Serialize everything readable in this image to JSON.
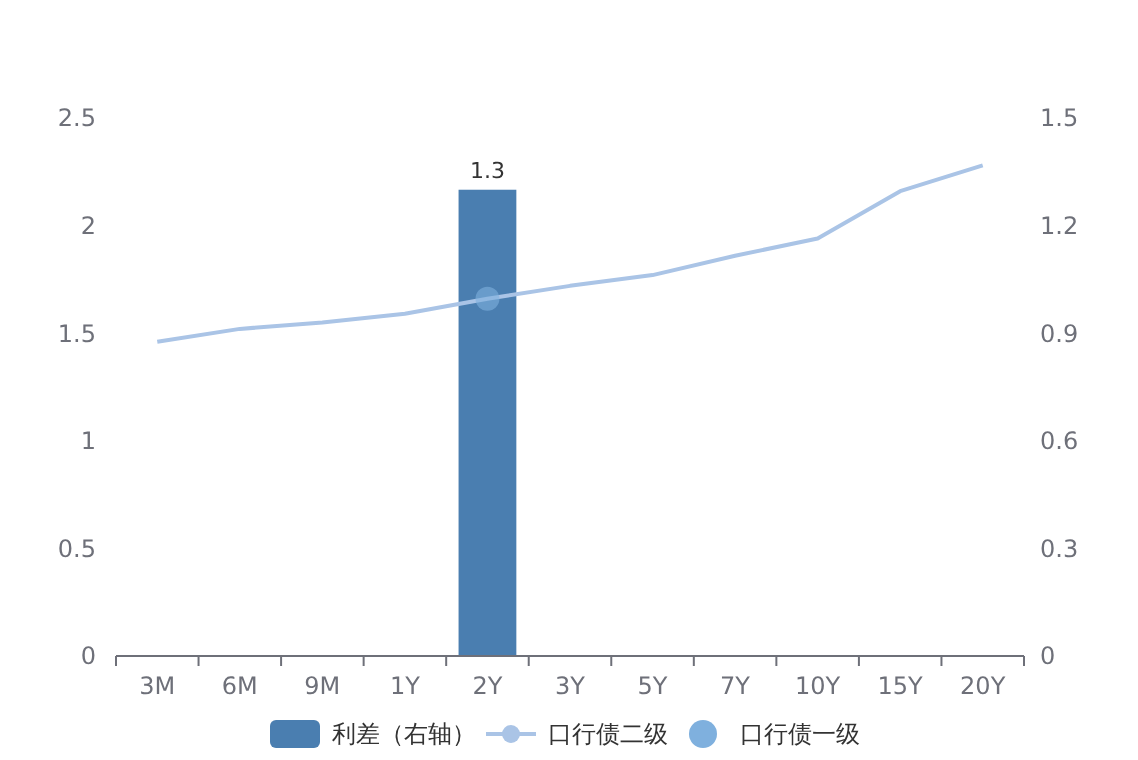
{
  "chart_data": {
    "type": "bar",
    "categories": [
      "3M",
      "6M",
      "9M",
      "1Y",
      "2Y",
      "3Y",
      "5Y",
      "7Y",
      "10Y",
      "15Y",
      "20Y"
    ],
    "series": [
      {
        "name": "利差（右轴）",
        "axis": "y2",
        "color": "#4a7eb0",
        "values": [
          null,
          null,
          null,
          null,
          1.3,
          null,
          null,
          null,
          null,
          null,
          null
        ],
        "data_labels": true
      },
      {
        "name": "口行债二级",
        "type": "line",
        "marker": "none",
        "color": "#aac4e6",
        "values": [
          1.46,
          1.52,
          1.55,
          1.59,
          1.66,
          1.72,
          1.77,
          1.86,
          1.94,
          2.16,
          2.28
        ]
      },
      {
        "name": "口行债一级",
        "type": "scatter",
        "marker": "circle",
        "color": "#7fb0de",
        "values": [
          null,
          null,
          null,
          null,
          1.66,
          null,
          null,
          null,
          null,
          null,
          null
        ]
      }
    ],
    "ylim": [
      0,
      2.5
    ],
    "yticks": [
      0,
      0.5,
      1,
      1.5,
      2,
      2.5
    ],
    "y2lim": [
      0,
      1.5
    ],
    "y2ticks": [
      0,
      0.3,
      0.6,
      0.9,
      1.2,
      1.5
    ],
    "grid": false,
    "legend": "bottom"
  }
}
